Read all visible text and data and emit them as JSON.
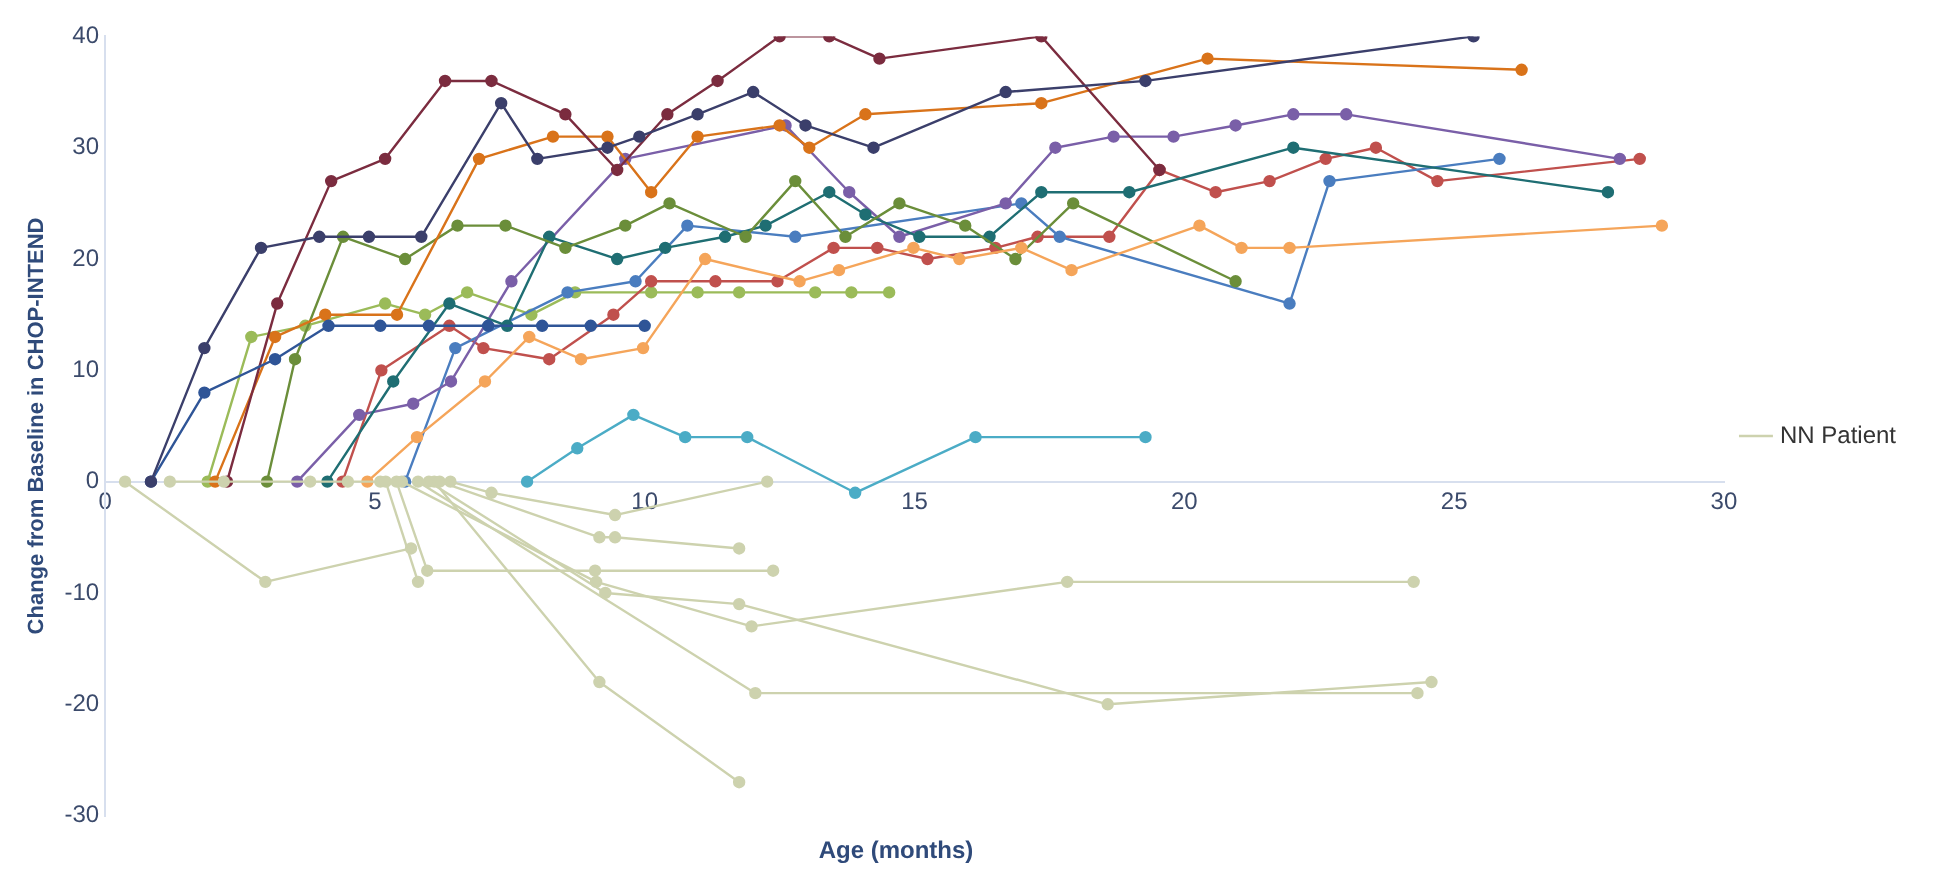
{
  "chart_data": {
    "type": "line",
    "xlabel": "Age (months)",
    "ylabel": "Change from Baseline in CHOP-INTEND",
    "xlim": [
      0,
      30
    ],
    "xticks": [
      0,
      5,
      10,
      15,
      20,
      25,
      30
    ],
    "ylim": [
      -30,
      40
    ],
    "yticks": [
      -30,
      -20,
      -10,
      0,
      10,
      20,
      30,
      40
    ],
    "grid": false,
    "legend": "right",
    "marker": "circle",
    "line_style": "solid",
    "series": [
      {
        "name": "NN Patient",
        "color": "#cdd2ae",
        "x": [
          0.37,
          2.97,
          5.67
        ],
        "values": [
          0,
          -9,
          -6
        ]
      },
      {
        "color": "#cdd2ae",
        "x": [
          5.4,
          5.97,
          9.08,
          12.38
        ],
        "values": [
          0,
          -8,
          -8,
          -8
        ]
      },
      {
        "color": "#cdd2ae",
        "x": [
          5.2,
          5.8
        ],
        "values": [
          0,
          -9
        ]
      },
      {
        "color": "#cdd2ae",
        "x": [
          6.4,
          7.16,
          9.45,
          12.27
        ],
        "values": [
          0,
          -1,
          -3,
          0
        ]
      },
      {
        "color": "#cdd2ae",
        "x": [
          6.2,
          9.16,
          9.45,
          11.75
        ],
        "values": [
          0,
          -5,
          -5,
          -6
        ]
      },
      {
        "color": "#cdd2ae",
        "x": [
          6,
          9.27,
          11.75,
          18.58,
          24.58
        ],
        "values": [
          0,
          -10,
          -11,
          -20,
          -18
        ]
      },
      {
        "color": "#cdd2ae",
        "x": [
          5.5,
          9.1,
          11.98,
          17.83,
          24.25
        ],
        "values": [
          0,
          -9,
          -13,
          -9,
          -9
        ]
      },
      {
        "color": "#cdd2ae",
        "x": [
          6.1,
          9.16,
          11.75
        ],
        "values": [
          0,
          -18,
          -27
        ]
      },
      {
        "color": "#cdd2ae",
        "x": [
          5.8,
          12.05,
          24.32
        ],
        "values": [
          0,
          -19,
          -19
        ]
      },
      {
        "color": "#cdd2ae",
        "x": [
          1.2,
          2.2,
          3.8,
          4.5,
          5.1
        ],
        "values": [
          0,
          0,
          0,
          0,
          0
        ]
      },
      {
        "color": "#3b3f6b",
        "x": [
          0.85,
          1.84,
          2.89,
          3.97,
          4.89,
          5.86,
          7.34,
          8.01,
          9.31,
          9.9,
          10.98,
          12.01,
          12.98,
          14.24,
          16.69,
          19.28,
          25.36
        ],
        "values": [
          0,
          12,
          21,
          22,
          22,
          22,
          34,
          29,
          30,
          31,
          33,
          35,
          32,
          30,
          35,
          36,
          40
        ]
      },
      {
        "color": "#2f5597",
        "x": [
          0.85,
          1.84,
          3.15,
          4.14,
          5.1,
          6,
          7.1,
          8.1,
          9,
          10
        ],
        "values": [
          0,
          8,
          11,
          14,
          14,
          14,
          14,
          14,
          14,
          14
        ]
      },
      {
        "color": "#7b2c3f",
        "x": [
          2.26,
          3.19,
          4.19,
          5.19,
          6.3,
          7.16,
          8.53,
          9.49,
          10.42,
          11.35,
          12.5,
          13.42,
          14.35,
          17.35,
          19.54
        ],
        "values": [
          0,
          16,
          27,
          29,
          36,
          36,
          33,
          28,
          33,
          36,
          40,
          40,
          38,
          40,
          28
        ]
      },
      {
        "color": "#d9731a",
        "x": [
          2.04,
          3.15,
          4.08,
          5.41,
          6.93,
          8.3,
          9.31,
          10.12,
          10.98,
          12.5,
          13.05,
          14.09,
          17.35,
          20.43,
          26.25
        ],
        "values": [
          0,
          13,
          15,
          15,
          29,
          31,
          31,
          26,
          31,
          32,
          30,
          33,
          34,
          38,
          37
        ]
      },
      {
        "color": "#f5a55a",
        "x": [
          4.86,
          5.78,
          7.04,
          7.86,
          8.82,
          9.97,
          11.12,
          12.87,
          13.6,
          14.98,
          15.83,
          16.98,
          17.91,
          20.28,
          21.06,
          21.95,
          28.85
        ],
        "values": [
          0,
          4,
          9,
          13,
          11,
          12,
          20,
          18,
          19,
          21,
          20,
          21,
          19,
          23,
          21,
          21,
          23
        ]
      },
      {
        "color": "#6b8e3a",
        "x": [
          3,
          3.52,
          4.41,
          5.56,
          6.53,
          7.42,
          8.53,
          9.64,
          10.46,
          11.87,
          12.79,
          13.72,
          14.72,
          15.94,
          16.87,
          17.94,
          20.95
        ],
        "values": [
          0,
          11,
          22,
          20,
          23,
          23,
          21,
          23,
          25,
          22,
          27,
          22,
          25,
          23,
          20,
          25,
          18
        ]
      },
      {
        "color": "#1f6e73",
        "x": [
          4.12,
          5.34,
          6.38,
          7.45,
          8.23,
          9.49,
          10.38,
          11.49,
          12.24,
          13.42,
          14.09,
          15.09,
          16.39,
          17.35,
          18.98,
          22.02,
          27.85
        ],
        "values": [
          0,
          9,
          16,
          14,
          22,
          20,
          21,
          22,
          23,
          26,
          24,
          22,
          22,
          26,
          26,
          30,
          26
        ]
      },
      {
        "color": "#7a5fa8",
        "x": [
          3.56,
          4.71,
          5.71,
          6.41,
          7.53,
          9.64,
          12.61,
          13.79,
          14.72,
          16.69,
          17.61,
          18.69,
          19.8,
          20.95,
          22.02,
          23,
          28.07
        ],
        "values": [
          0,
          6,
          7,
          9,
          18,
          29,
          32,
          26,
          22,
          25,
          30,
          31,
          31,
          32,
          33,
          33,
          29
        ]
      },
      {
        "color": "#4a7dbf",
        "x": [
          5.56,
          6.49,
          8.57,
          9.83,
          10.79,
          12.79,
          16.98,
          17.69,
          21.95,
          22.69,
          25.84
        ],
        "values": [
          0,
          12,
          17,
          18,
          23,
          22,
          25,
          22,
          16,
          27,
          29
        ]
      },
      {
        "color": "#c0504d",
        "x": [
          4.4,
          5.12,
          6.38,
          7.01,
          8.23,
          9.42,
          10.12,
          11.31,
          12.46,
          13.5,
          14.31,
          15.24,
          16.5,
          17.28,
          18.61,
          19.54,
          20.58,
          21.58,
          22.62,
          23.55,
          24.69,
          28.44
        ],
        "values": [
          0,
          10,
          14,
          12,
          11,
          15,
          18,
          18,
          18,
          21,
          21,
          20,
          21,
          22,
          22,
          28,
          26,
          27,
          29,
          30,
          27,
          29
        ]
      },
      {
        "color": "#9bbb59",
        "x": [
          1.9,
          2.71,
          3.71,
          5.19,
          5.93,
          6.71,
          7.9,
          8.71,
          10.12,
          10.98,
          11.75,
          13.16,
          13.83,
          14.53
        ],
        "values": [
          0,
          13,
          14,
          16,
          15,
          17,
          15,
          17,
          17,
          17,
          17,
          17,
          17,
          17
        ]
      },
      {
        "color": "#4bacc6",
        "x": [
          7.82,
          8.75,
          9.79,
          10.75,
          11.9,
          13.9,
          16.13,
          19.28
        ],
        "values": [
          0,
          3,
          6,
          4,
          4,
          -1,
          4,
          4
        ]
      }
    ]
  }
}
